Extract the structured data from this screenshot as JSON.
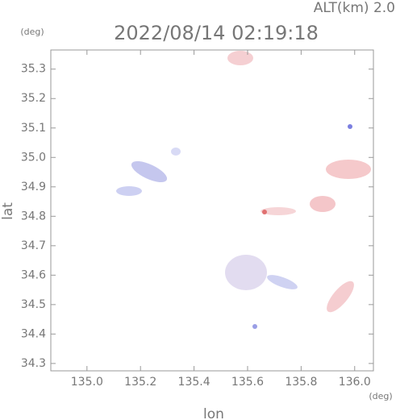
{
  "chart_data": {
    "type": "map",
    "title": "2022/08/14 02:19:18",
    "subtitle": "ALT(km) 2.0",
    "x_label": "lon",
    "y_label": "lat",
    "x_unit": "(deg)",
    "y_unit": "(deg)",
    "xlim": [
      134.865,
      136.07
    ],
    "ylim": [
      34.275,
      35.365
    ],
    "xticks": [
      {
        "value": 135,
        "label": "135.0"
      },
      135.2,
      135.4,
      135.6,
      135.8,
      {
        "value": 136,
        "label": "136.0"
      }
    ],
    "yticks": [
      34.3,
      34.4,
      34.5,
      34.6,
      34.7,
      34.8,
      34.9,
      {
        "value": 35,
        "label": "35.0"
      },
      35.1,
      35.2,
      35.3
    ]
  }
}
